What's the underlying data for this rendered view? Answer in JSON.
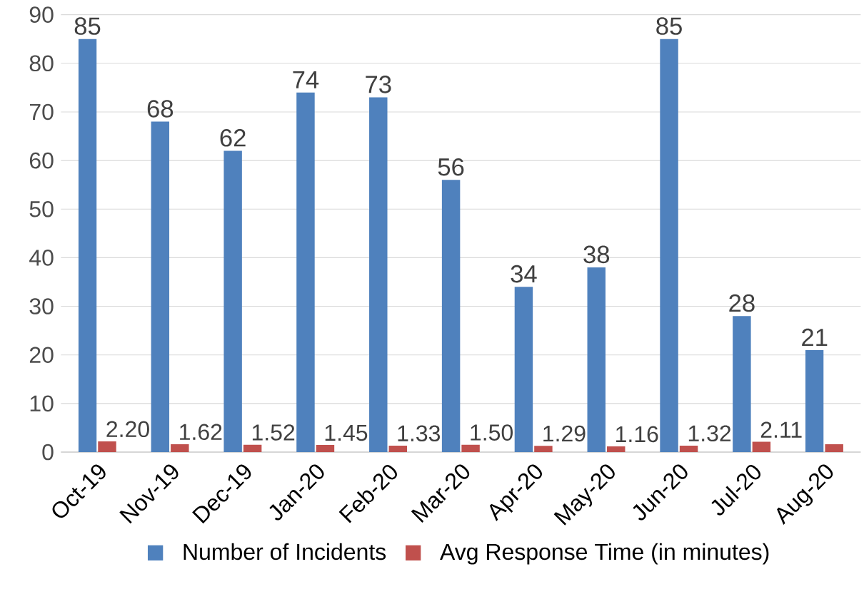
{
  "chart_data": {
    "type": "bar",
    "categories": [
      "Oct-19",
      "Nov-19",
      "Dec-19",
      "Jan-20",
      "Feb-20",
      "Mar-20",
      "Apr-20",
      "May-20",
      "Jun-20",
      "Jul-20",
      "Aug-20"
    ],
    "series": [
      {
        "name": "Number of Incidents",
        "color": "#4f81bd",
        "values": [
          85,
          68,
          62,
          74,
          73,
          56,
          34,
          38,
          85,
          28,
          21
        ],
        "value_labels": [
          "85",
          "68",
          "62",
          "74",
          "73",
          "56",
          "34",
          "38",
          "85",
          "28",
          "21"
        ]
      },
      {
        "name": "Avg Response Time (in minutes)",
        "color": "#c0504d",
        "values": [
          2.2,
          1.62,
          1.52,
          1.45,
          1.33,
          1.5,
          1.29,
          1.16,
          1.32,
          2.11,
          1.6
        ],
        "value_labels": [
          "2.20",
          "1.62",
          "1.52",
          "1.45",
          "1.33",
          "1.50",
          "1.29",
          "1.16",
          "1.32",
          "2.11",
          null
        ]
      }
    ],
    "ylim": [
      0,
      90
    ],
    "yticks": [
      0,
      10,
      20,
      30,
      40,
      50,
      60,
      70,
      80,
      90
    ],
    "grid": "y",
    "legend": "bottom"
  }
}
